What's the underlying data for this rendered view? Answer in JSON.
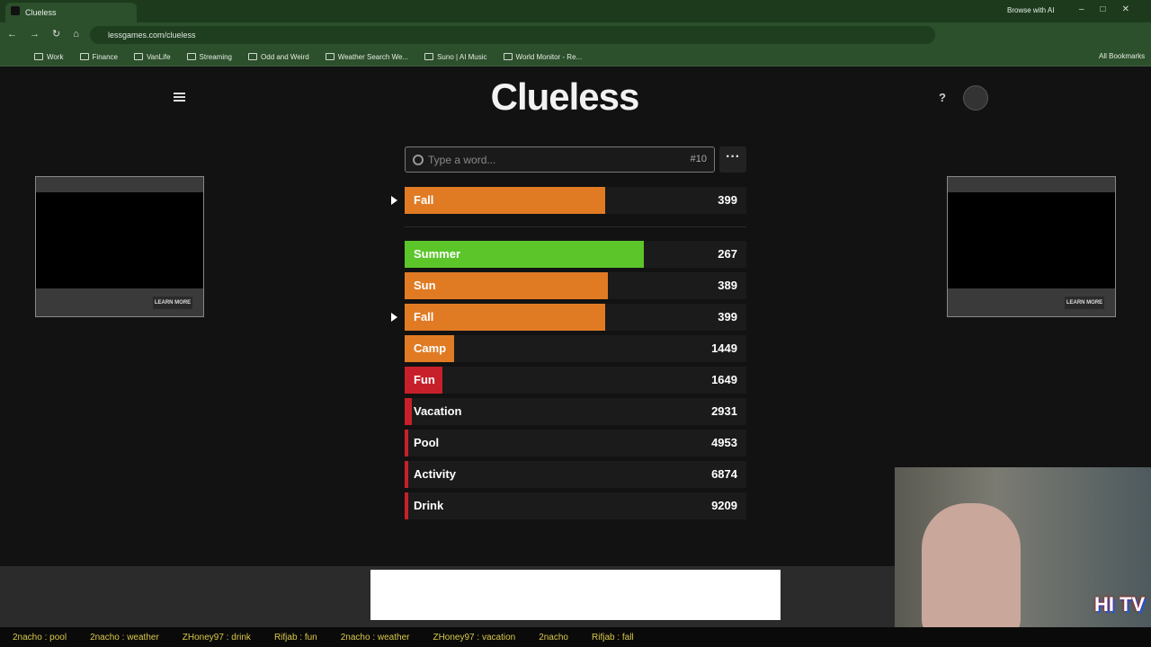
{
  "browser": {
    "tab_title": "Clueless",
    "browse_ai": "Browse with AI",
    "url": "lessgames.com/clueless",
    "bookmarks": [
      "Work",
      "Finance",
      "VanLife",
      "Streaming",
      "Odd and Weird",
      "Weather Search We...",
      "Suno | AI Music",
      "World Monitor - Re..."
    ],
    "all_bookmarks": "All Bookmarks"
  },
  "game": {
    "title": "Clueless",
    "input_placeholder": "Type a word...",
    "guess_number": "#10",
    "latest_guess": {
      "word": "Fall",
      "rank": 399
    },
    "guesses": [
      {
        "word": "Summer",
        "rank": 267
      },
      {
        "word": "Sun",
        "rank": 389
      },
      {
        "word": "Fall",
        "rank": 399
      },
      {
        "word": "Camp",
        "rank": 1449
      },
      {
        "word": "Fun",
        "rank": 1649
      },
      {
        "word": "Vacation",
        "rank": 2931
      },
      {
        "word": "Pool",
        "rank": 4953
      },
      {
        "word": "Activity",
        "rank": 6874
      },
      {
        "word": "Drink",
        "rank": 9209
      }
    ]
  },
  "ads": [
    {
      "button": "LEARN MORE"
    },
    {
      "button": "LEARN MORE"
    }
  ],
  "stream": {
    "chat": [
      "2nacho : pool",
      "2nacho : weather",
      "ZHoney97 : drink",
      "Rifjab : fun",
      "2nacho : weather",
      "ZHoney97 : vacation",
      "2nacho",
      "Rifjab : fall"
    ],
    "logo": "HI TV"
  }
}
